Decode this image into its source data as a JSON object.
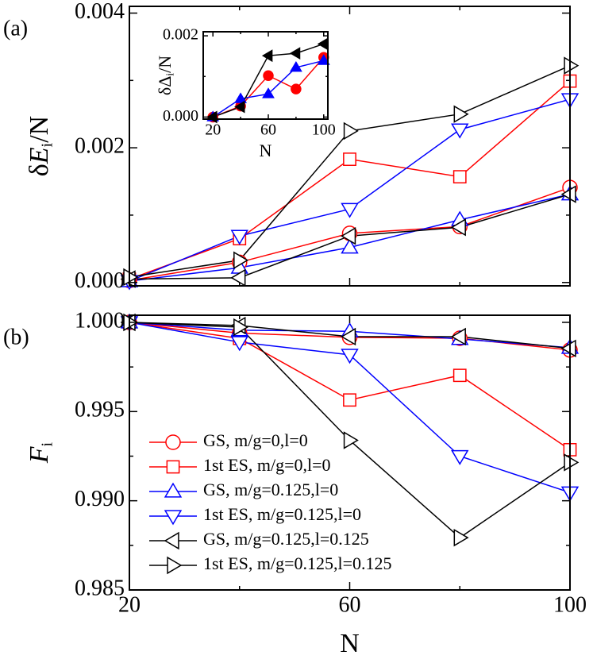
{
  "chart_data": [
    {
      "type": "line",
      "panel_label": "(a)",
      "ylabel": [
        "δ",
        "E",
        "i",
        "/N"
      ],
      "xlim": [
        20,
        100
      ],
      "xticks": [
        20,
        60,
        100
      ],
      "xminor_ticks": [
        40,
        80
      ],
      "ylim": [
        -5e-05,
        0.0041
      ],
      "yticks": [
        {
          "value": 0,
          "label": "0.000"
        },
        {
          "value": 0.002,
          "label": "0.002"
        },
        {
          "value": 0.004,
          "label": "0.004"
        }
      ],
      "yminor_ticks": [
        0.001,
        0.003
      ],
      "marker_fill": "open",
      "x": [
        20,
        40,
        60,
        80,
        100
      ],
      "series": [
        {
          "color": "#ff0000",
          "marker": "circle",
          "values": [
            3e-05,
            0.0003,
            0.00073,
            0.00083,
            0.00141
          ]
        },
        {
          "color": "#ff0000",
          "marker": "square",
          "values": [
            5e-05,
            0.00065,
            0.00183,
            0.00157,
            0.00299
          ]
        },
        {
          "color": "#0000ff",
          "marker": "triangle-up",
          "values": [
            2e-05,
            0.00022,
            0.00052,
            0.00093,
            0.00131
          ]
        },
        {
          "color": "#0000ff",
          "marker": "triangle-down",
          "values": [
            2e-05,
            0.00069,
            0.00109,
            0.00227,
            0.00272
          ]
        },
        {
          "color": "#000000",
          "marker": "triangle-left",
          "values": [
            5e-05,
            7e-05,
            0.00069,
            0.00082,
            0.00131
          ]
        },
        {
          "color": "#000000",
          "marker": "triangle-right",
          "values": [
            8e-05,
            0.00033,
            0.00225,
            0.0025,
            0.00322
          ]
        }
      ]
    },
    {
      "type": "line",
      "inset": true,
      "ylabel": [
        "δΔ",
        "i",
        "/N"
      ],
      "xlabel": "N",
      "xlim": [
        13,
        103
      ],
      "xticks": [
        20,
        60,
        100
      ],
      "xminor_ticks": [
        40,
        80
      ],
      "ylim": [
        -5e-05,
        0.0021
      ],
      "yticks": [
        {
          "value": 0,
          "label": "0.000"
        },
        {
          "value": 0.002,
          "label": "0.002"
        }
      ],
      "yminor_ticks": [
        0.001
      ],
      "marker_fill": "filled",
      "x": [
        20,
        40,
        60,
        80,
        100
      ],
      "series": [
        {
          "color": "#ff0000",
          "marker": "circle",
          "values": [
            0,
            0.00027,
            0.00102,
            0.00069,
            0.00147
          ]
        },
        {
          "color": "#0000ff",
          "marker": "triangle-up",
          "values": [
            0,
            0.00045,
            0.00057,
            0.00122,
            0.00139
          ]
        },
        {
          "color": "#000000",
          "marker": "triangle-left",
          "values": [
            0,
            0.00025,
            0.00151,
            0.00157,
            0.0018
          ]
        }
      ]
    },
    {
      "type": "line",
      "panel_label": "(b)",
      "ylabel": [
        "F",
        "i"
      ],
      "xlabel": "N",
      "xlim": [
        20,
        100
      ],
      "xticks": [
        20,
        60,
        100
      ],
      "xminor_ticks": [
        40,
        80
      ],
      "ylim": [
        0.985,
        1.0004
      ],
      "yticks": [
        {
          "value": 0.985,
          "label": "0.985"
        },
        {
          "value": 0.99,
          "label": "0.990"
        },
        {
          "value": 0.995,
          "label": "0.995"
        },
        {
          "value": 1,
          "label": "1.000"
        }
      ],
      "yminor_ticks": [
        0.9875,
        0.9925,
        0.9975
      ],
      "marker_fill": "open",
      "legend": "lower left",
      "x": [
        20,
        40,
        60,
        80,
        100
      ],
      "series": [
        {
          "name": "GS, m/g=0,l=0",
          "color": "#ff0000",
          "marker": "circle",
          "values": [
            1.0,
            0.9994,
            0.99916,
            0.99911,
            0.99845
          ]
        },
        {
          "name": "1st ES, m/g=0,l=0",
          "color": "#ff0000",
          "marker": "square",
          "values": [
            1.0,
            0.9991,
            0.99565,
            0.99703,
            0.99286
          ]
        },
        {
          "name": "GS, m/g=0.125,l=0",
          "color": "#0000ff",
          "marker": "triangle-up",
          "values": [
            1.0,
            0.99956,
            0.9995,
            0.99907,
            0.99858
          ]
        },
        {
          "name": "1st ES, m/g=0.125,l=0",
          "color": "#0000ff",
          "marker": "triangle-down",
          "values": [
            1.0,
            0.99889,
            0.99818,
            0.9925,
            0.99046
          ]
        },
        {
          "name": "GS, m/g=0.125,l=0.125",
          "color": "#000000",
          "marker": "triangle-left",
          "values": [
            1.0,
            0.99982,
            0.9992,
            0.9992,
            0.99854
          ]
        },
        {
          "name": "1st ES, m/g=0.125,l=0.125",
          "color": "#000000",
          "marker": "triangle-right",
          "values": [
            1.0,
            0.99973,
            0.99339,
            0.98793,
            0.99215
          ]
        }
      ]
    }
  ]
}
